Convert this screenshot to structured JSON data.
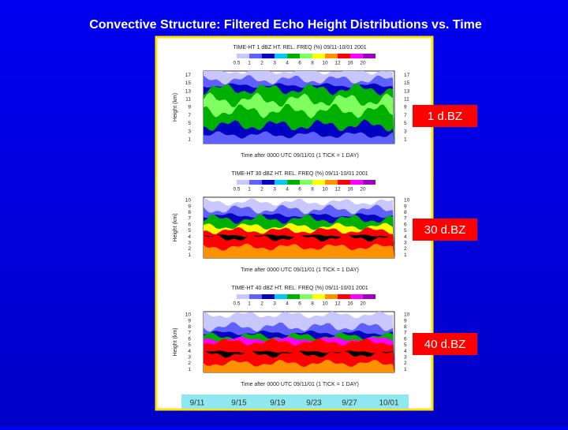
{
  "title": "Convective Structure:  Filtered Echo Height Distributions vs. Time",
  "colorbar_labels": [
    "0.5",
    "1",
    "2",
    "3",
    "4",
    "6",
    "8",
    "10",
    "12",
    "16",
    "20"
  ],
  "y_axis_label": "Height (km)",
  "panels": [
    {
      "heading": "TIME-HT 1 dBZ HT. REL. FREQ (%) 09/11-10/01 2001",
      "y_ticks": [
        "17",
        "15",
        "13",
        "11",
        "9",
        "7",
        "5",
        "3",
        "1"
      ],
      "footer": "Time after 0000 UTC 09/11/01 (1 TICK = 1 DAY)",
      "label": "1 d.BZ"
    },
    {
      "heading": "TIME-HT 30 dBZ HT. REL. FREQ (%) 09/11-10/01 2001",
      "y_ticks": [
        "10",
        "9",
        "8",
        "7",
        "6",
        "5",
        "4",
        "3",
        "2",
        "1"
      ],
      "footer": "Time after 0000 UTC 09/11/01 (1 TICK = 1 DAY)",
      "label": "30 d.BZ"
    },
    {
      "heading": "TIME-HT 40 dBZ HT. REL. FREQ (%) 09/11-10/01 2001",
      "y_ticks": [
        "10",
        "9",
        "8",
        "7",
        "6",
        "5",
        "4",
        "3",
        "2",
        "1"
      ],
      "footer": "Time after 0000 UTC 09/11/01 (1 TICK = 1 DAY)",
      "label": "40 d.BZ"
    }
  ],
  "dates": [
    "9/11",
    "9/15",
    "9/19",
    "9/23",
    "9/27",
    "10/01"
  ]
}
